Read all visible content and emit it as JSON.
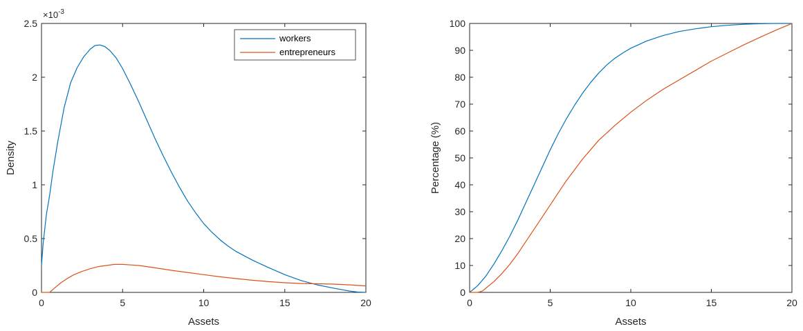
{
  "colors": {
    "workers": "#0072BD",
    "entrepreneurs": "#D95319",
    "axis": "#262626"
  },
  "chart_data": [
    {
      "type": "line",
      "xlabel": "Assets",
      "ylabel": "Density",
      "xlim": [
        0,
        20
      ],
      "ylim": [
        0,
        2.5
      ],
      "y_exponent_label": "×10",
      "y_exponent_power": "-3",
      "x_ticks": [
        "0",
        "5",
        "10",
        "15",
        "20"
      ],
      "y_ticks": [
        "0",
        "0.5",
        "1",
        "1.5",
        "2",
        "2.5"
      ],
      "legend": {
        "position": "top-right",
        "entries": [
          "workers",
          "entrepreneurs"
        ]
      },
      "series": [
        {
          "name": "workers",
          "x": [
            0,
            0.1,
            0.3,
            0.5,
            0.7,
            1.0,
            1.4,
            1.8,
            2.2,
            2.6,
            3.0,
            3.3,
            3.6,
            3.9,
            4.2,
            4.6,
            5.0,
            5.5,
            6.0,
            6.5,
            7.0,
            7.5,
            8.0,
            8.5,
            9.0,
            9.5,
            10.0,
            10.5,
            11.0,
            11.5,
            12.0,
            13.0,
            14.0,
            15.0,
            16.0,
            17.0,
            18.0,
            19.0,
            19.5,
            20.0
          ],
          "y": [
            0.25,
            0.45,
            0.72,
            0.9,
            1.12,
            1.4,
            1.72,
            1.95,
            2.09,
            2.19,
            2.26,
            2.295,
            2.3,
            2.285,
            2.25,
            2.18,
            2.08,
            1.93,
            1.77,
            1.6,
            1.43,
            1.27,
            1.12,
            0.98,
            0.85,
            0.74,
            0.64,
            0.56,
            0.49,
            0.43,
            0.38,
            0.3,
            0.23,
            0.165,
            0.11,
            0.07,
            0.04,
            0.012,
            0.003,
            0.0
          ]
        },
        {
          "name": "entrepreneurs",
          "x": [
            0,
            0.5,
            0.8,
            1.2,
            1.6,
            2.0,
            2.5,
            3.0,
            3.5,
            4.0,
            4.5,
            5.0,
            5.5,
            6.0,
            6.5,
            7.0,
            8.0,
            9.0,
            10.0,
            11.0,
            12.0,
            13.0,
            14.0,
            15.0,
            16.0,
            17.0,
            18.0,
            19.0,
            20.0
          ],
          "y": [
            0.0,
            0.0,
            0.04,
            0.09,
            0.13,
            0.165,
            0.195,
            0.22,
            0.24,
            0.25,
            0.26,
            0.26,
            0.255,
            0.25,
            0.24,
            0.228,
            0.205,
            0.185,
            0.165,
            0.145,
            0.128,
            0.113,
            0.1,
            0.09,
            0.083,
            0.08,
            0.077,
            0.07,
            0.06
          ]
        }
      ]
    },
    {
      "type": "line",
      "xlabel": "Assets",
      "ylabel": "Percentage (%)",
      "xlim": [
        0,
        20
      ],
      "ylim": [
        0,
        100
      ],
      "x_ticks": [
        "0",
        "5",
        "10",
        "15",
        "20"
      ],
      "y_ticks": [
        "0",
        "10",
        "20",
        "30",
        "40",
        "50",
        "60",
        "70",
        "80",
        "90",
        "100"
      ],
      "series": [
        {
          "name": "workers",
          "x": [
            0,
            0.5,
            1.0,
            1.5,
            2.0,
            2.5,
            3.0,
            3.5,
            4.0,
            4.5,
            5.0,
            5.5,
            6.0,
            6.5,
            7.0,
            7.5,
            8.0,
            8.5,
            9.0,
            9.5,
            10.0,
            11.0,
            12.0,
            13.0,
            14.0,
            15.0,
            16.0,
            17.0,
            18.0,
            19.0,
            20.0
          ],
          "y": [
            0,
            2.5,
            6,
            10.5,
            15.5,
            21,
            27,
            33.5,
            40,
            46.5,
            53,
            59,
            64.5,
            69.5,
            74,
            78,
            81.5,
            84.5,
            87,
            89,
            90.8,
            93.5,
            95.5,
            97,
            98,
            98.8,
            99.3,
            99.7,
            99.9,
            100,
            100
          ]
        },
        {
          "name": "entrepreneurs",
          "x": [
            0,
            0.5,
            0.8,
            1.0,
            1.5,
            2.0,
            2.5,
            3.0,
            3.5,
            4.0,
            4.5,
            5.0,
            5.5,
            6.0,
            6.5,
            7.0,
            7.5,
            8.0,
            9.0,
            10.0,
            11.0,
            12.0,
            13.0,
            14.0,
            15.0,
            16.0,
            17.0,
            18.0,
            19.0,
            20.0
          ],
          "y": [
            0,
            0,
            0.5,
            1.5,
            4,
            7,
            10.5,
            14.5,
            19,
            23.5,
            28,
            32.5,
            37,
            41.5,
            45.5,
            49.5,
            53,
            56.5,
            62,
            67,
            71.5,
            75.5,
            79,
            82.5,
            86,
            89,
            92,
            94.8,
            97.5,
            100
          ]
        }
      ]
    }
  ]
}
